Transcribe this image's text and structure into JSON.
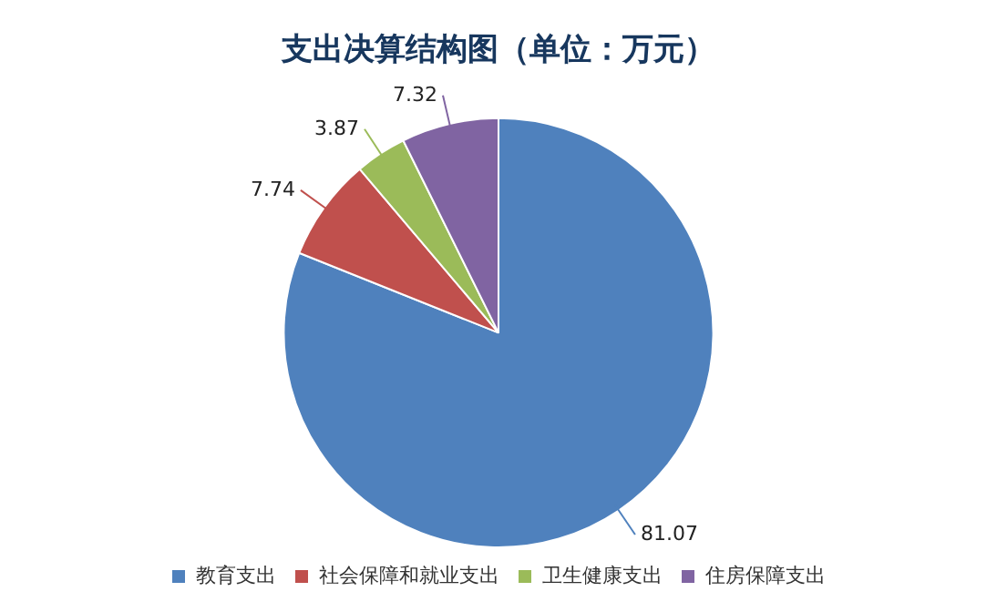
{
  "chart_data": {
    "type": "pie",
    "title": "支出决算结构图（单位：万元）",
    "categories": [
      "教育支出",
      "社会保障和就业支出",
      "卫生健康支出",
      "住房保障支出"
    ],
    "values": [
      81.07,
      7.74,
      3.87,
      7.32
    ],
    "colors": [
      "#4f81bd",
      "#c0504d",
      "#9bbb59",
      "#8064a2"
    ],
    "data_labels": true,
    "legend": "bottom"
  }
}
